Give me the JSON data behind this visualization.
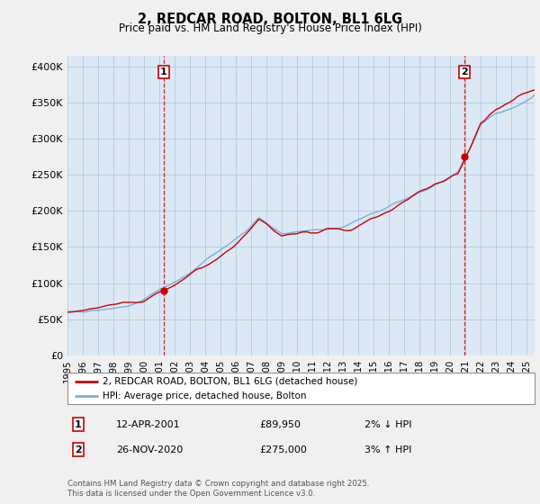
{
  "title": "2, REDCAR ROAD, BOLTON, BL1 6LG",
  "subtitle": "Price paid vs. HM Land Registry's House Price Index (HPI)",
  "ylabel_ticks": [
    "£0",
    "£50K",
    "£100K",
    "£150K",
    "£200K",
    "£250K",
    "£300K",
    "£350K",
    "£400K"
  ],
  "ytick_values": [
    0,
    50000,
    100000,
    150000,
    200000,
    250000,
    300000,
    350000,
    400000
  ],
  "ylim": [
    0,
    415000
  ],
  "xlim_start": 1995.0,
  "xlim_end": 2025.5,
  "sale1_x": 2001.27,
  "sale1_y": 89950,
  "sale2_x": 2020.9,
  "sale2_y": 275000,
  "line_color_property": "#cc0000",
  "line_color_hpi": "#7bafd4",
  "plot_bg_color": "#dce9f5",
  "background_color": "#f0f0f0",
  "grid_color": "#b0c8e0",
  "legend_label_property": "2, REDCAR ROAD, BOLTON, BL1 6LG (detached house)",
  "legend_label_hpi": "HPI: Average price, detached house, Bolton",
  "annotation1_date": "12-APR-2001",
  "annotation1_price": "£89,950",
  "annotation1_hpi": "2% ↓ HPI",
  "annotation2_date": "26-NOV-2020",
  "annotation2_price": "£275,000",
  "annotation2_hpi": "3% ↑ HPI",
  "footer": "Contains HM Land Registry data © Crown copyright and database right 2025.\nThis data is licensed under the Open Government Licence v3.0.",
  "xticks": [
    1995,
    1996,
    1997,
    1998,
    1999,
    2000,
    2001,
    2002,
    2003,
    2004,
    2005,
    2006,
    2007,
    2008,
    2009,
    2010,
    2011,
    2012,
    2013,
    2014,
    2015,
    2016,
    2017,
    2018,
    2019,
    2020,
    2021,
    2022,
    2023,
    2024,
    2025
  ]
}
